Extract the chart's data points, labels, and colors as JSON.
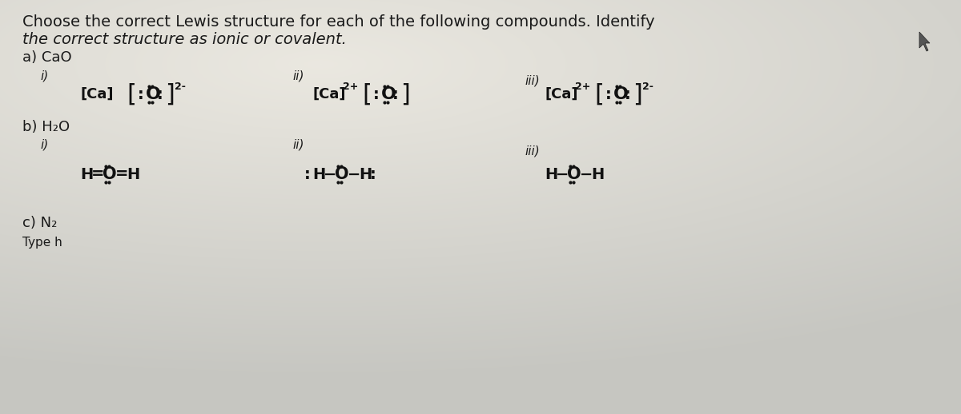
{
  "bg_color": "#c8c8c8",
  "bg_gradient": true,
  "text_color": "#1a1a1a",
  "formula_color": "#111111",
  "title_line1": "Choose the correct Lewis structure for each of the following compounds. Identify",
  "title_line2": "the correct structure as ionic or covalent.",
  "section_a": "a) CaO",
  "section_b": "b) H₂O",
  "section_c": "c) N₂",
  "type_label": "Type h",
  "label_i": "i)",
  "label_ii": "ii)",
  "label_iii": "iii)",
  "fs_title": 14,
  "fs_section": 13,
  "fs_label": 11,
  "fs_formula": 13,
  "fs_bracket": 22,
  "fs_super": 9
}
